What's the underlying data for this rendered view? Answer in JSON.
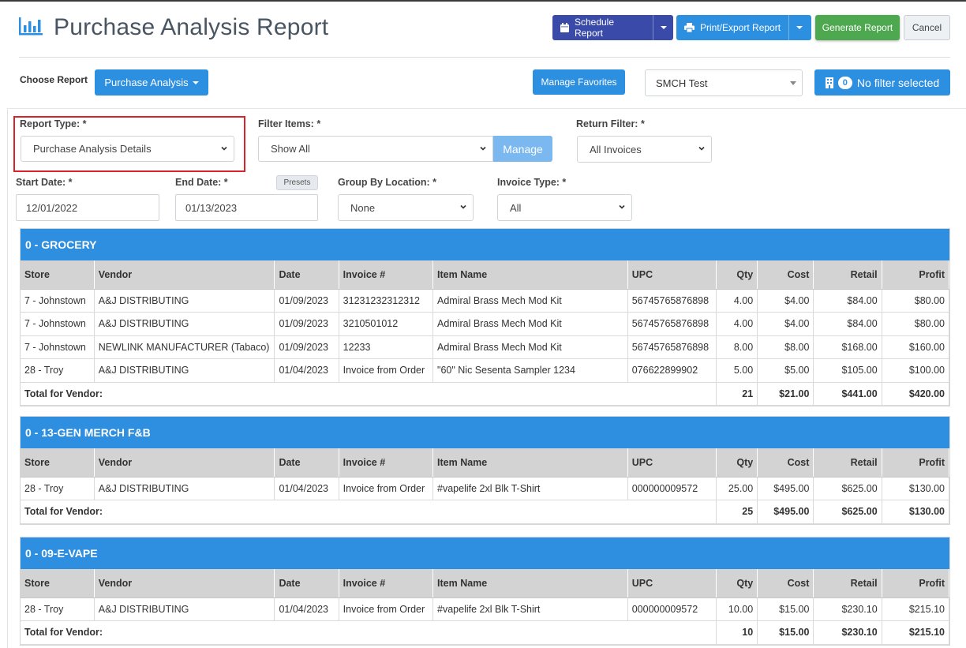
{
  "header": {
    "title": "Purchase Analysis Report",
    "schedule_label": "Schedule Report",
    "print_label": "Print/Export Report",
    "generate_label": "Generate Report",
    "cancel_label": "Cancel"
  },
  "toolbar": {
    "choose_label": "Choose Report",
    "choose_value": "Purchase Analysis",
    "manage_favorites": "Manage Favorites",
    "store_value": "SMCH Test",
    "filter_count": "0",
    "filter_label": "No filter selected"
  },
  "filters": {
    "report_type_label": "Report Type: *",
    "report_type_value": "Purchase Analysis Details",
    "filter_items_label": "Filter Items: *",
    "filter_items_value": "Show All",
    "manage_label": "Manage",
    "return_filter_label": "Return Filter: *",
    "return_filter_value": "All Invoices",
    "start_date_label": "Start Date: *",
    "start_date_value": "12/01/2022",
    "end_date_label": "End Date: *",
    "end_date_value": "01/13/2023",
    "presets_label": "Presets",
    "group_label": "Group By Location: *",
    "group_value": "None",
    "invoice_type_label": "Invoice Type: *",
    "invoice_type_value": "All"
  },
  "columns": [
    "Store",
    "Vendor",
    "Date",
    "Invoice #",
    "Item Name",
    "UPC",
    "Qty",
    "Cost",
    "Retail",
    "Profit"
  ],
  "total_label": "Total for Vendor:",
  "sections": [
    {
      "title": "0 - GROCERY",
      "rows": [
        [
          "7 - Johnstown",
          "A&J DISTRIBUTING",
          "01/09/2023",
          "31231232312312",
          " Admiral Brass Mech Mod Kit",
          "56745765876898",
          "4.00",
          "$4.00",
          "$84.00",
          "$80.00"
        ],
        [
          "7 - Johnstown",
          "A&J DISTRIBUTING",
          "01/09/2023",
          "3210501012",
          " Admiral Brass Mech Mod Kit",
          "56745765876898",
          "4.00",
          "$4.00",
          "$84.00",
          "$80.00"
        ],
        [
          "7 - Johnstown",
          "NEWLINK MANUFACTURER (Tabaco)",
          "01/09/2023",
          " 12233",
          " Admiral Brass Mech Mod Kit",
          "56745765876898",
          "8.00",
          "$8.00",
          "$168.00",
          "$160.00"
        ],
        [
          "28 - Troy",
          "A&J DISTRIBUTING",
          "01/04/2023",
          "Invoice from Order",
          " \"60\" Nic Sesenta Sampler 1234",
          "076622899902",
          "5.00",
          "$5.00",
          "$105.00",
          "$100.00"
        ]
      ],
      "totals": [
        "21",
        "$21.00",
        "$441.00",
        "$420.00"
      ]
    },
    {
      "title": "0 - 13-GEN MERCH F&B",
      "rows": [
        [
          "28 - Troy",
          "A&J DISTRIBUTING",
          "01/04/2023",
          "Invoice from Order",
          "#vapelife 2xl Blk T-Shirt",
          "000000009572",
          "25.00",
          "$495.00",
          "$625.00",
          "$130.00"
        ]
      ],
      "totals": [
        "25",
        "$495.00",
        "$625.00",
        "$130.00"
      ]
    },
    {
      "title": "0 - 09-E-VAPE",
      "rows": [
        [
          "28 - Troy",
          "A&J DISTRIBUTING",
          "01/04/2023",
          "Invoice from Order",
          "#vapelife 2xl Blk T-Shirt",
          "000000009572",
          "10.00",
          "$15.00",
          "$230.10",
          "$215.10"
        ]
      ],
      "totals": [
        "10",
        "$15.00",
        "$230.10",
        "$215.10"
      ]
    }
  ]
}
